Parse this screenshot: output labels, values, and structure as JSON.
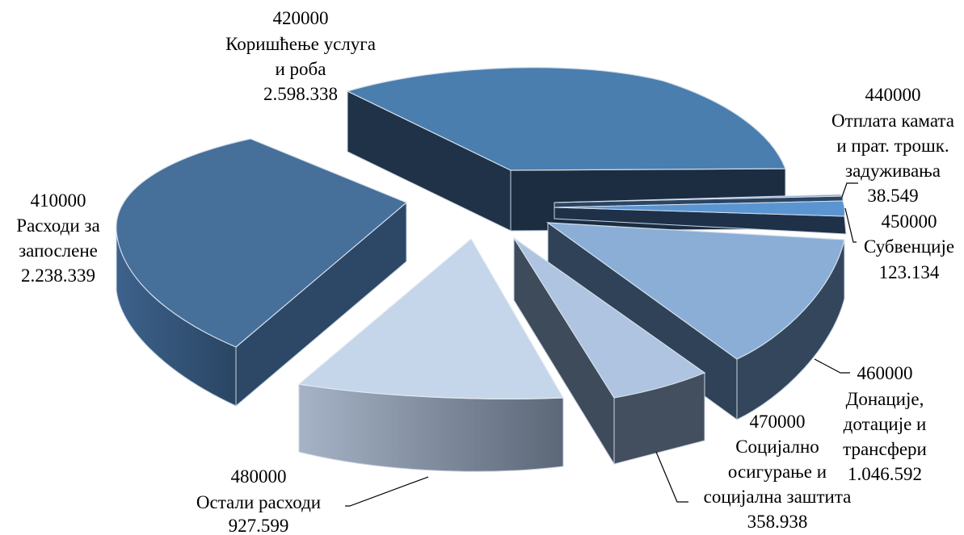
{
  "chart_data": {
    "type": "pie",
    "title": "",
    "style": "3d-exploded",
    "slices": [
      {
        "code": "410000",
        "name": "Расходи за запослене",
        "lines": [
          "Расходи за",
          "запослене"
        ],
        "value": 2238339,
        "value_label": "2.238.339",
        "color": "#466f9a"
      },
      {
        "code": "420000",
        "name": "Коришћење услуга и роба",
        "lines": [
          "Коришћење услуга",
          "и роба"
        ],
        "value": 2598338,
        "value_label": "2.598.338",
        "color": "#4a7eae"
      },
      {
        "code": "440000",
        "name": "Отплата камата и прат. трошк. задуживања",
        "lines": [
          "Отплата камата",
          "и прат. трошк.",
          "задуживања"
        ],
        "value": 38549,
        "value_label": "38.549",
        "color": "#8aa6c8"
      },
      {
        "code": "450000",
        "name": "Субвенције",
        "lines": [
          "Субвенције"
        ],
        "value": 123134,
        "value_label": "123.134",
        "color": "#5a95d2"
      },
      {
        "code": "460000",
        "name": "Донације, дотације и трансфери",
        "lines": [
          "Донације,",
          "дотације и",
          "трансфери"
        ],
        "value": 1046592,
        "value_label": "1.046.592",
        "color": "#8aaed6"
      },
      {
        "code": "470000",
        "name": "Социјално осигурање и социјална заштита",
        "lines": [
          "Социјално",
          "осигурање и",
          "социјална заштита"
        ],
        "value": 358938,
        "value_label": "358.938",
        "color": "#aec4e0"
      },
      {
        "code": "480000",
        "name": "Остали расходи",
        "lines": [
          "Остали расходи"
        ],
        "value": 927599,
        "value_label": "927.599",
        "color": "#c5d5ea"
      }
    ]
  }
}
